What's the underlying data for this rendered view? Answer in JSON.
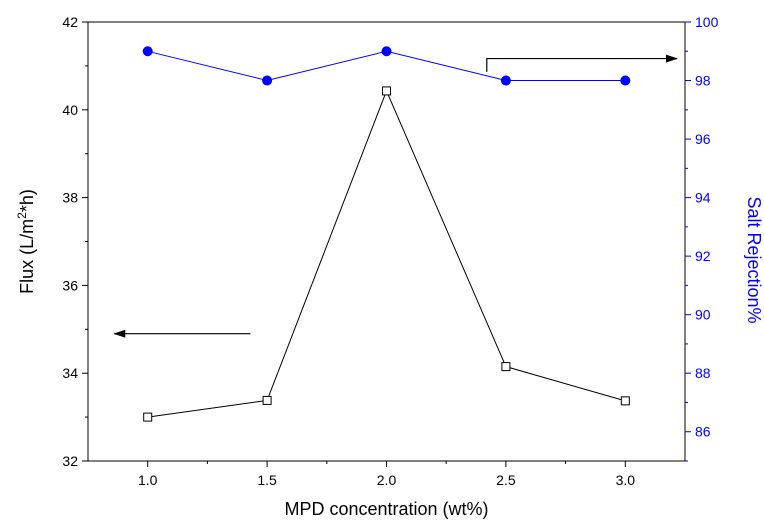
{
  "chart_data": {
    "type": "line",
    "title": "",
    "xlabel": "MPD concentration (wt%)",
    "ylabel_left_parts": {
      "pre": "Flux (L/m",
      "sup": "2",
      "post": "*h)"
    },
    "ylabel_right": "Salt Rejection%",
    "xlim": [
      0.75,
      3.25
    ],
    "ylim_left": [
      32,
      42
    ],
    "ylim_right": [
      85,
      100
    ],
    "x_ticks": [
      1.0,
      1.5,
      2.0,
      2.5,
      3.0
    ],
    "x_tick_labels": [
      "1.0",
      "1.5",
      "2.0",
      "2.5",
      "3.0"
    ],
    "y_left_ticks": [
      32,
      34,
      36,
      38,
      40,
      42
    ],
    "y_left_tick_labels": [
      "32",
      "34",
      "36",
      "38",
      "40",
      "42"
    ],
    "y_right_ticks": [
      86,
      88,
      90,
      92,
      94,
      96,
      98,
      100
    ],
    "y_right_tick_labels": [
      "86",
      "88",
      "90",
      "92",
      "94",
      "96",
      "98",
      "100"
    ],
    "grid": false,
    "series": [
      {
        "axis": "left",
        "marker": "open-square",
        "color": "#000000",
        "x": [
          1.0,
          1.5,
          2.0,
          2.5,
          3.0
        ],
        "values": [
          33.0,
          33.38,
          40.43,
          34.15,
          33.37
        ]
      },
      {
        "axis": "right",
        "marker": "filled-circle",
        "color": "#0000ff",
        "x": [
          1.0,
          1.5,
          2.0,
          2.5,
          3.0
        ],
        "values": [
          99.0,
          98.0,
          99.0,
          98.0,
          98.0
        ]
      }
    ],
    "annotations": [
      {
        "type": "arrow",
        "direction": "left",
        "axis": "left",
        "x_from": 1.43,
        "x_to": 0.86,
        "y": 34.9
      },
      {
        "type": "bent-arrow",
        "direction": "right",
        "axis": "right",
        "x_from": 2.42,
        "x_to": 3.25,
        "y": 98.75,
        "y_base": 98.3
      }
    ],
    "colors": {
      "left_axis": "#000000",
      "right_axis": "#0000ff"
    }
  }
}
